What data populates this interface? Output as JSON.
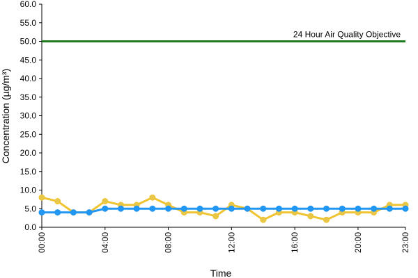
{
  "chart_data": {
    "type": "line",
    "xlabel": "Time",
    "ylabel": "Concentration (µg/m³)",
    "ylim": [
      0,
      60
    ],
    "y_ticks": [
      "0.0",
      "5.0",
      "10.0",
      "15.0",
      "20.0",
      "25.0",
      "30.0",
      "35.0",
      "40.0",
      "45.0",
      "50.0",
      "55.0",
      "60.0"
    ],
    "x": [
      0,
      1,
      2,
      3,
      4,
      5,
      6,
      7,
      8,
      9,
      10,
      11,
      12,
      13,
      14,
      15,
      16,
      17,
      18,
      19,
      20,
      21,
      22,
      23
    ],
    "x_ticks": [
      {
        "x": 0,
        "label": "00:00"
      },
      {
        "x": 4,
        "label": "04:00"
      },
      {
        "x": 8,
        "label": "08:00"
      },
      {
        "x": 12,
        "label": "12:00"
      },
      {
        "x": 16,
        "label": "16:00"
      },
      {
        "x": 20,
        "label": "20:00"
      },
      {
        "x": 23,
        "label": "23:00"
      }
    ],
    "grid": false,
    "series": [
      {
        "color": "#f0c431",
        "marker": "#e8c64a",
        "values": [
          8,
          7,
          4,
          4,
          7,
          6,
          6,
          8,
          6,
          4,
          4,
          3,
          6,
          5,
          2,
          4,
          4,
          3,
          2,
          4,
          4,
          4,
          6,
          6
        ]
      },
      {
        "color": "#2196f3",
        "marker": "#2196f3",
        "values": [
          4,
          4,
          4,
          4,
          5,
          5,
          5,
          5,
          5,
          5,
          5,
          5,
          5,
          5,
          5,
          5,
          5,
          5,
          5,
          5,
          5,
          5,
          5,
          5
        ]
      }
    ],
    "reference_line": {
      "value": 50,
      "label": "24 Hour Air Quality Objective",
      "color": "#1e7a1e"
    }
  }
}
